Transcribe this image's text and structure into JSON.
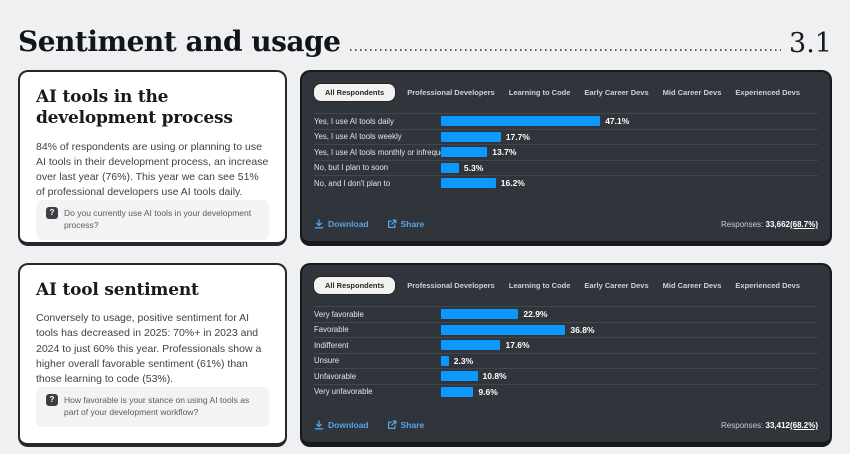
{
  "page": {
    "header": {
      "title": "Sentiment and usage",
      "section_number": "3.1"
    }
  },
  "cards": [
    {
      "title": "AI tools in the development process",
      "body": "84% of respondents are using or planning to use AI tools in their development process, an increase over last year (76%). This year we can see 51% of professional developers use AI tools daily.",
      "question": "Do you currently use AI tools in your development process?",
      "question_icon": "?"
    },
    {
      "title": "AI tool sentiment",
      "body": "Conversely to usage, positive sentiment for AI tools has decreased in 2025: 70%+ in 2023 and 2024 to just 60% this year. Professionals show a higher overall favorable sentiment (61%) than those learning to code (53%).",
      "question": "How favorable is your stance on using AI tools as part of your development workflow?",
      "question_icon": "?"
    }
  ],
  "tabs": {
    "active": "All Respondents",
    "items": [
      "All Respondents",
      "Professional Developers",
      "Learning to Code",
      "Early Career Devs",
      "Mid Career Devs",
      "Experienced Devs"
    ]
  },
  "panel_footer": {
    "download": "Download",
    "share": "Share",
    "responses_label": "Responses:"
  },
  "chart_data": [
    {
      "type": "bar",
      "orientation": "horizontal",
      "title": "Do you currently use AI tools in your development process?",
      "categories": [
        "Yes, I use AI tools daily",
        "Yes, I use AI tools weekly",
        "Yes, I use AI tools monthly or infrequently",
        "No, but I plan to soon",
        "No, and I don't plan to"
      ],
      "values": [
        47.1,
        17.7,
        13.7,
        5.3,
        16.2
      ],
      "value_labels": [
        "47.1%",
        "17.7%",
        "13.7%",
        "5.3%",
        "16.2%"
      ],
      "xlim": [
        0,
        100
      ],
      "legend": "none",
      "grid": "row-dividers",
      "responses_count": "33,662",
      "responses_pct": "(68.7%)"
    },
    {
      "type": "bar",
      "orientation": "horizontal",
      "title": "How favorable is your stance on using AI tools as part of your development workflow?",
      "categories": [
        "Very favorable",
        "Favorable",
        "Indifferent",
        "Unsure",
        "Unfavorable",
        "Very unfavorable"
      ],
      "values": [
        22.9,
        36.8,
        17.6,
        2.3,
        10.8,
        9.6
      ],
      "value_labels": [
        "22.9%",
        "36.8%",
        "17.6%",
        "2.3%",
        "10.8%",
        "9.6%"
      ],
      "xlim": [
        0,
        100
      ],
      "legend": "none",
      "grid": "row-dividers",
      "responses_count": "33,412",
      "responses_pct": "(68.2%)"
    }
  ],
  "colors": {
    "accent_blue": "#0d99fb",
    "link_blue": "#5aa2e8",
    "panel_bg": "#2f353b",
    "page_bg": "#eef0f1"
  }
}
